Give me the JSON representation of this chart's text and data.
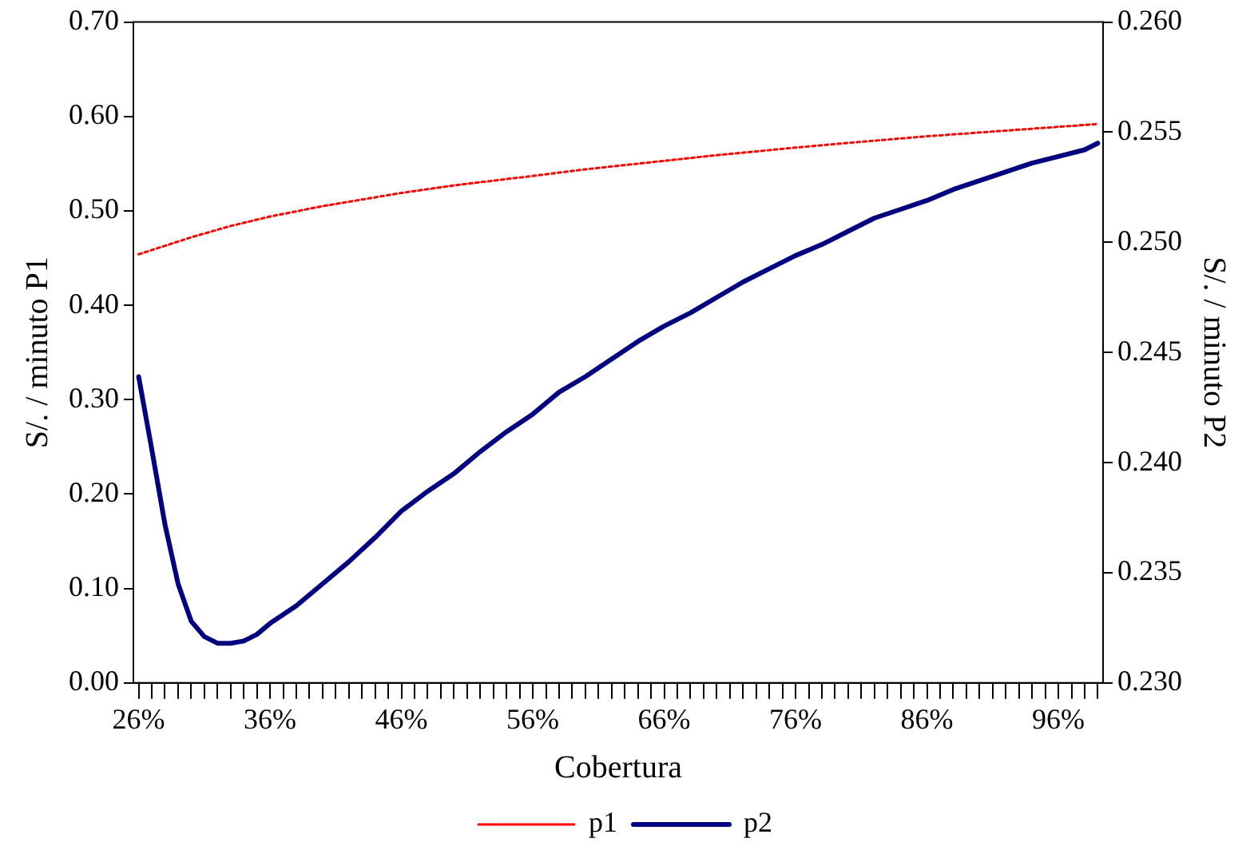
{
  "chart_data": {
    "type": "line",
    "xlabel": "Cobertura",
    "ylabel": "S/. / minuto P1",
    "y2label": "S/. / minuto P2",
    "xlim": [
      25.6,
      99.4
    ],
    "xticks": [
      {
        "value": 26,
        "label": "26%"
      },
      {
        "value": 27,
        "label": null
      },
      {
        "value": 28,
        "label": null
      },
      {
        "value": 29,
        "label": null
      },
      {
        "value": 30,
        "label": null
      },
      {
        "value": 31,
        "label": null
      },
      {
        "value": 32,
        "label": null
      },
      {
        "value": 33,
        "label": null
      },
      {
        "value": 34,
        "label": null
      },
      {
        "value": 35,
        "label": null
      },
      {
        "value": 36,
        "label": "36%"
      },
      {
        "value": 37,
        "label": null
      },
      {
        "value": 38,
        "label": null
      },
      {
        "value": 39,
        "label": null
      },
      {
        "value": 40,
        "label": null
      },
      {
        "value": 41,
        "label": null
      },
      {
        "value": 42,
        "label": null
      },
      {
        "value": 43,
        "label": null
      },
      {
        "value": 44,
        "label": null
      },
      {
        "value": 45,
        "label": null
      },
      {
        "value": 46,
        "label": "46%"
      },
      {
        "value": 47,
        "label": null
      },
      {
        "value": 48,
        "label": null
      },
      {
        "value": 49,
        "label": null
      },
      {
        "value": 50,
        "label": null
      },
      {
        "value": 51,
        "label": null
      },
      {
        "value": 52,
        "label": null
      },
      {
        "value": 53,
        "label": null
      },
      {
        "value": 54,
        "label": null
      },
      {
        "value": 55,
        "label": null
      },
      {
        "value": 56,
        "label": "56%"
      },
      {
        "value": 57,
        "label": null
      },
      {
        "value": 58,
        "label": null
      },
      {
        "value": 59,
        "label": null
      },
      {
        "value": 60,
        "label": null
      },
      {
        "value": 61,
        "label": null
      },
      {
        "value": 62,
        "label": null
      },
      {
        "value": 63,
        "label": null
      },
      {
        "value": 64,
        "label": null
      },
      {
        "value": 65,
        "label": null
      },
      {
        "value": 66,
        "label": "66%"
      },
      {
        "value": 67,
        "label": null
      },
      {
        "value": 68,
        "label": null
      },
      {
        "value": 69,
        "label": null
      },
      {
        "value": 70,
        "label": null
      },
      {
        "value": 71,
        "label": null
      },
      {
        "value": 72,
        "label": null
      },
      {
        "value": 73,
        "label": null
      },
      {
        "value": 74,
        "label": null
      },
      {
        "value": 75,
        "label": null
      },
      {
        "value": 76,
        "label": "76%"
      },
      {
        "value": 77,
        "label": null
      },
      {
        "value": 78,
        "label": null
      },
      {
        "value": 79,
        "label": null
      },
      {
        "value": 80,
        "label": null
      },
      {
        "value": 81,
        "label": null
      },
      {
        "value": 82,
        "label": null
      },
      {
        "value": 83,
        "label": null
      },
      {
        "value": 84,
        "label": null
      },
      {
        "value": 85,
        "label": null
      },
      {
        "value": 86,
        "label": "86%"
      },
      {
        "value": 87,
        "label": null
      },
      {
        "value": 88,
        "label": null
      },
      {
        "value": 89,
        "label": null
      },
      {
        "value": 90,
        "label": null
      },
      {
        "value": 91,
        "label": null
      },
      {
        "value": 92,
        "label": null
      },
      {
        "value": 93,
        "label": null
      },
      {
        "value": 94,
        "label": null
      },
      {
        "value": 95,
        "label": null
      },
      {
        "value": 96,
        "label": "96%"
      },
      {
        "value": 97,
        "label": null
      },
      {
        "value": 98,
        "label": null
      },
      {
        "value": 99,
        "label": null
      }
    ],
    "ylim": [
      0,
      0.7
    ],
    "yticks": [
      {
        "value": 0,
        "label": "0.00"
      },
      {
        "value": 0.1,
        "label": "0.10"
      },
      {
        "value": 0.2,
        "label": "0.20"
      },
      {
        "value": 0.3,
        "label": "0.30"
      },
      {
        "value": 0.4,
        "label": "0.40"
      },
      {
        "value": 0.5,
        "label": "0.50"
      },
      {
        "value": 0.6,
        "label": "0.60"
      },
      {
        "value": 0.7,
        "label": "0.70"
      }
    ],
    "y2lim": [
      0.23,
      0.26
    ],
    "y2ticks": [
      {
        "value": 0.23,
        "label": "0.230"
      },
      {
        "value": 0.235,
        "label": "0.235"
      },
      {
        "value": 0.24,
        "label": "0.240"
      },
      {
        "value": 0.245,
        "label": "0.245"
      },
      {
        "value": 0.25,
        "label": "0.250"
      },
      {
        "value": 0.255,
        "label": "0.255"
      },
      {
        "value": 0.26,
        "label": "0.260"
      }
    ],
    "grid": false,
    "legend": "bottom",
    "marker": "none",
    "series": [
      {
        "name": "p1",
        "color": "#ff0000",
        "line_style": "dotted",
        "x": [
          26,
          28,
          30,
          33,
          36,
          40,
          46,
          50,
          56,
          60,
          66,
          70,
          76,
          80,
          86,
          90,
          96,
          99
        ],
        "values": [
          0.454,
          0.463,
          0.472,
          0.484,
          0.494,
          0.505,
          0.519,
          0.527,
          0.537,
          0.544,
          0.553,
          0.559,
          0.567,
          0.572,
          0.579,
          0.583,
          0.589,
          0.592
        ]
      },
      {
        "name": "p2",
        "color": "#000080",
        "line_style": "solid",
        "axis": "y2",
        "x": [
          26,
          27,
          28,
          29,
          30,
          31,
          32,
          33,
          34,
          35,
          36,
          38,
          40,
          42,
          44,
          46,
          48,
          50,
          52,
          54,
          56,
          58,
          60,
          62,
          64,
          66,
          68,
          70,
          72,
          74,
          76,
          78,
          80,
          82,
          84,
          86,
          88,
          90,
          92,
          94,
          96,
          98,
          99
        ],
        "values": [
          0.2439,
          0.2406,
          0.2372,
          0.2345,
          0.2328,
          0.2321,
          0.2318,
          0.2318,
          0.2319,
          0.2322,
          0.2327,
          0.2335,
          0.2345,
          0.2355,
          0.2366,
          0.2378,
          0.2387,
          0.2395,
          0.2405,
          0.2414,
          0.2422,
          0.2432,
          0.2439,
          0.2447,
          0.2455,
          0.2462,
          0.2468,
          0.2475,
          0.2482,
          0.2488,
          0.2494,
          0.2499,
          0.2505,
          0.2511,
          0.2515,
          0.2519,
          0.2524,
          0.2528,
          0.2532,
          0.2536,
          0.2539,
          0.2542,
          0.2545
        ]
      }
    ]
  }
}
